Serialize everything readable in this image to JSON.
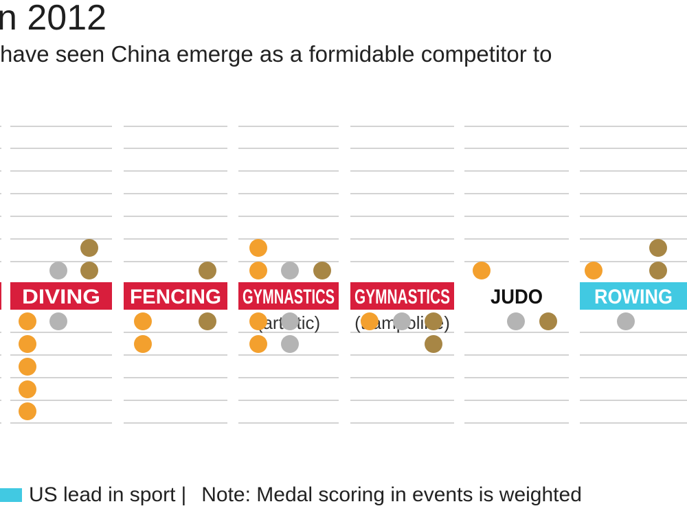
{
  "title": "n 2012",
  "subtitle": "have seen China emerge as a formidable competitor to",
  "colors": {
    "china_lead": "#d81e3c",
    "us_lead": "#41c9e2",
    "gold": "#f3a02e",
    "silver": "#b4b4b4",
    "bronze": "#a78645",
    "gridline": "#d3d3d3"
  },
  "chart_data": {
    "type": "dot_matrix",
    "description_note": "Dots above the sport label belong to the upper side, dots below to the lower side; each row is one medal.",
    "sports": [
      {
        "name": "",
        "lead": "china",
        "upper": {
          "gold": 0,
          "silver": 0,
          "bronze": 0
        },
        "lower": {
          "gold": 0,
          "silver": 0,
          "bronze": 0
        }
      },
      {
        "name": "DIVING",
        "sub": "",
        "lead": "china",
        "upper": {
          "gold": 0,
          "silver": 1,
          "bronze": 2
        },
        "lower": {
          "gold": 5,
          "silver": 1,
          "bronze": 0
        }
      },
      {
        "name": "FENCING",
        "sub": "",
        "lead": "china",
        "upper": {
          "gold": 0,
          "silver": 0,
          "bronze": 1
        },
        "lower": {
          "gold": 2,
          "silver": 0,
          "bronze": 1
        }
      },
      {
        "name": "GYMNASTICS",
        "sub": "(artistic)",
        "lead": "china",
        "upper": {
          "gold": 2,
          "silver": 1,
          "bronze": 1
        },
        "lower": {
          "gold": 2,
          "silver": 2,
          "bronze": 0
        }
      },
      {
        "name": "GYMNASTICS",
        "sub": "(trampoline)",
        "lead": "china",
        "upper": {
          "gold": 0,
          "silver": 0,
          "bronze": 0
        },
        "lower": {
          "gold": 1,
          "silver": 1,
          "bronze": 2
        }
      },
      {
        "name": "JUDO",
        "sub": "",
        "lead": "none",
        "upper": {
          "gold": 1,
          "silver": 0,
          "bronze": 0
        },
        "lower": {
          "gold": 0,
          "silver": 1,
          "bronze": 1
        }
      },
      {
        "name": "ROWING",
        "sub": "",
        "lead": "us",
        "upper": {
          "gold": 1,
          "silver": 0,
          "bronze": 2
        },
        "lower": {
          "gold": 0,
          "silver": 1,
          "bronze": 0
        }
      }
    ]
  },
  "footer": {
    "legend_label": "US lead in sport",
    "separator": "|",
    "note": "Note: Medal scoring in events is weighted"
  }
}
